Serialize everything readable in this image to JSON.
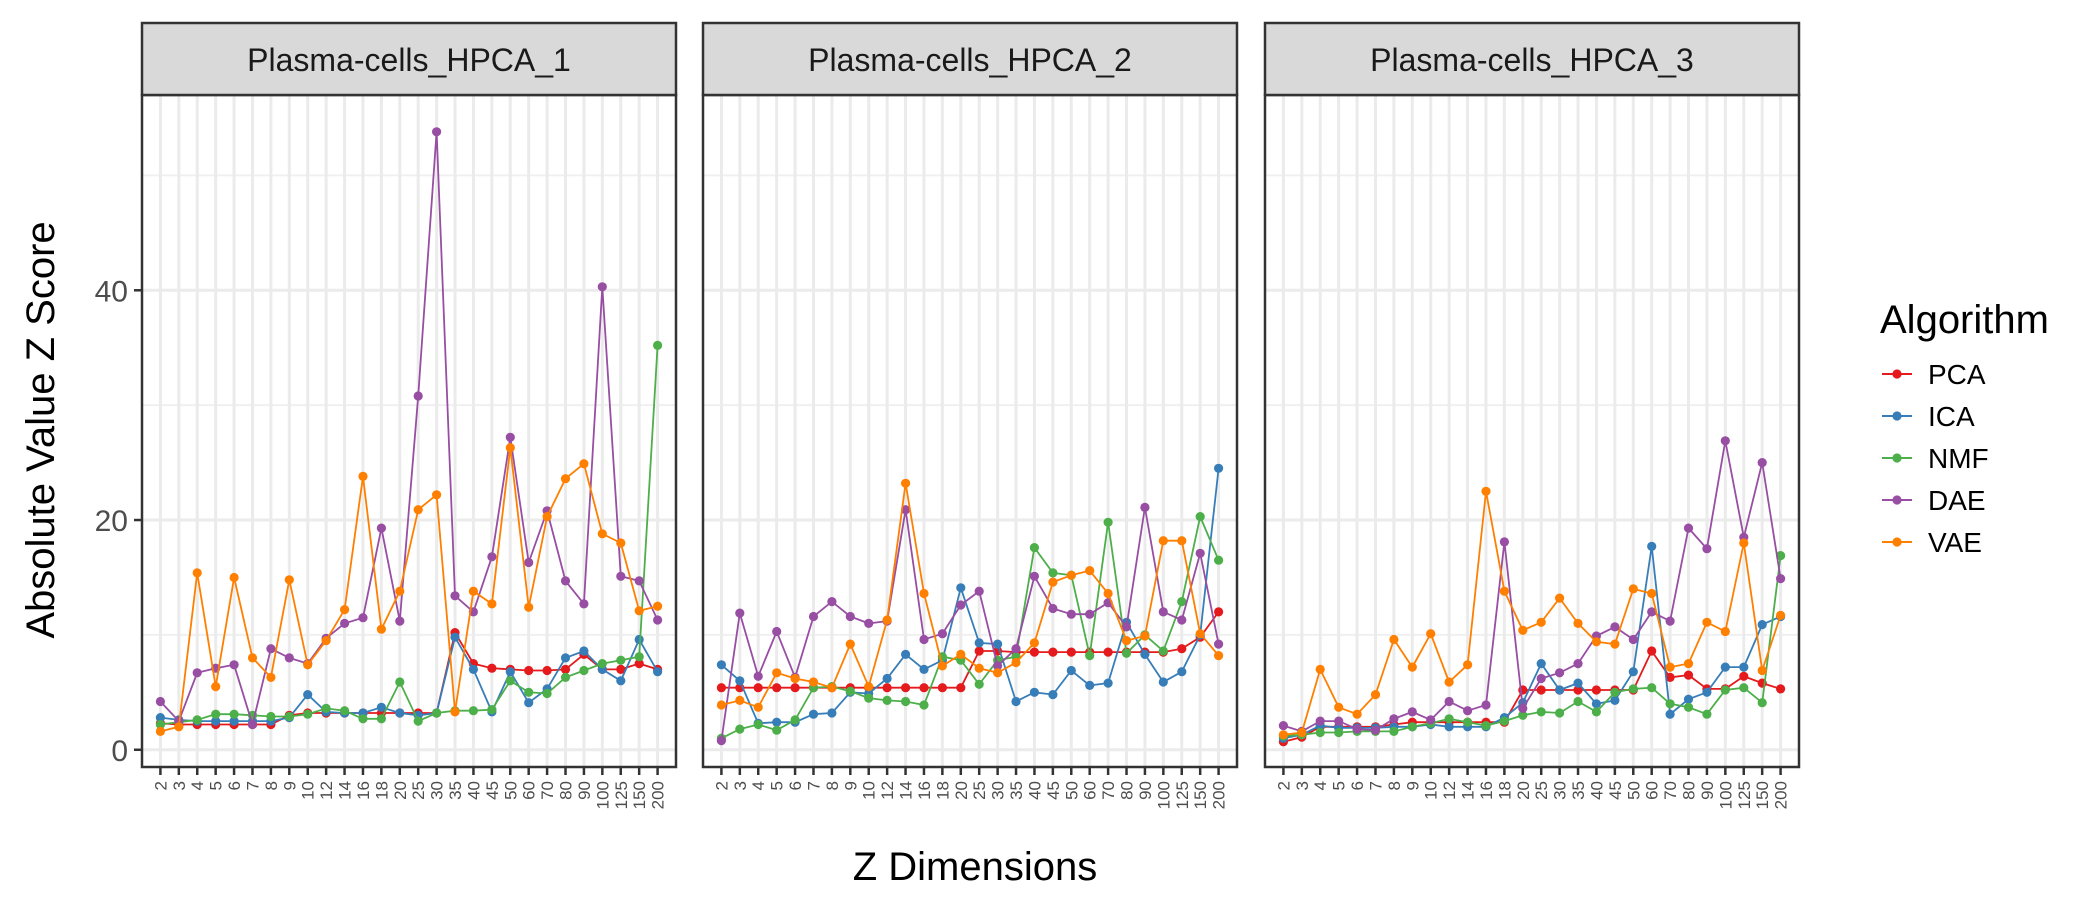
{
  "chart_data": {
    "type": "line",
    "xlabel": "Z Dimensions",
    "ylabel": "Absolute Value Z Score",
    "x": [
      "2",
      "3",
      "4",
      "5",
      "6",
      "7",
      "8",
      "9",
      "10",
      "12",
      "14",
      "16",
      "18",
      "20",
      "25",
      "30",
      "35",
      "40",
      "45",
      "50",
      "60",
      "70",
      "80",
      "90",
      "100",
      "125",
      "150",
      "200"
    ],
    "ylim": [
      -1.5,
      57
    ],
    "yticks": [
      0,
      20,
      40
    ],
    "grid": true,
    "legend": {
      "title": "Algorithm",
      "position": "right",
      "entries": [
        "PCA",
        "ICA",
        "NMF",
        "DAE",
        "VAE"
      ]
    },
    "colors": {
      "PCA": "#E41A1C",
      "ICA": "#377EB8",
      "NMF": "#4DAF4A",
      "DAE": "#984EA3",
      "VAE": "#FF7F00"
    },
    "panels": [
      {
        "title": "Plasma-cells_HPCA_1",
        "series": [
          {
            "name": "PCA",
            "values": [
              2.3,
              2.2,
              2.2,
              2.2,
              2.2,
              2.2,
              2.2,
              3.0,
              3.2,
              3.2,
              3.2,
              3.2,
              3.2,
              3.2,
              3.2,
              3.2,
              10.2,
              7.5,
              7.1,
              7.0,
              6.9,
              6.9,
              7.0,
              8.3,
              7.0,
              7.0,
              7.5,
              7.0
            ]
          },
          {
            "name": "ICA",
            "values": [
              2.8,
              2.6,
              2.5,
              2.5,
              2.5,
              2.5,
              2.5,
              2.8,
              4.8,
              3.3,
              3.2,
              3.2,
              3.7,
              3.2,
              3.0,
              3.2,
              9.8,
              7.0,
              3.3,
              6.8,
              4.1,
              5.3,
              8.0,
              8.6,
              7.0,
              6.0,
              9.6,
              6.8
            ]
          },
          {
            "name": "NMF",
            "values": [
              2.2,
              2.4,
              2.6,
              3.1,
              3.1,
              3.0,
              2.9,
              2.9,
              3.1,
              3.6,
              3.4,
              2.7,
              2.7,
              5.9,
              2.5,
              3.2,
              3.4,
              3.4,
              3.5,
              6.0,
              5.0,
              4.9,
              6.3,
              6.9,
              7.5,
              7.8,
              8.1,
              35.2
            ]
          },
          {
            "name": "DAE",
            "values": [
              4.2,
              2.5,
              6.7,
              7.1,
              7.4,
              2.2,
              8.8,
              8.0,
              7.5,
              9.7,
              11.0,
              11.5,
              19.3,
              11.2,
              30.8,
              53.8,
              13.4,
              12.0,
              16.8,
              27.2,
              16.3,
              20.8,
              14.7,
              12.7,
              40.3,
              15.1,
              14.7,
              11.3
            ]
          },
          {
            "name": "VAE",
            "values": [
              1.6,
              2.0,
              15.4,
              5.5,
              15.0,
              8.0,
              6.3,
              14.8,
              7.4,
              9.5,
              12.2,
              23.8,
              10.5,
              13.8,
              20.9,
              22.2,
              3.3,
              13.8,
              12.7,
              26.3,
              12.4,
              20.3,
              23.6,
              24.9,
              18.8,
              18.0,
              12.1,
              12.5
            ]
          }
        ]
      },
      {
        "title": "Plasma-cells_HPCA_2",
        "series": [
          {
            "name": "PCA",
            "values": [
              5.4,
              5.4,
              5.4,
              5.4,
              5.4,
              5.4,
              5.4,
              5.4,
              5.4,
              5.4,
              5.4,
              5.4,
              5.4,
              5.4,
              8.6,
              8.6,
              8.5,
              8.5,
              8.5,
              8.5,
              8.5,
              8.5,
              8.5,
              8.5,
              8.5,
              8.8,
              9.8,
              12.0
            ]
          },
          {
            "name": "ICA",
            "values": [
              7.4,
              6.0,
              2.3,
              2.4,
              2.4,
              3.1,
              3.2,
              5.0,
              4.9,
              6.2,
              8.3,
              7.0,
              7.8,
              14.1,
              9.3,
              9.2,
              4.2,
              5.0,
              4.8,
              6.9,
              5.6,
              5.8,
              11.1,
              8.3,
              5.9,
              6.8,
              10.0,
              24.5
            ]
          },
          {
            "name": "NMF",
            "values": [
              1.0,
              1.8,
              2.2,
              1.7,
              2.6,
              5.4,
              5.5,
              5.1,
              4.5,
              4.3,
              4.2,
              3.9,
              8.1,
              7.8,
              5.7,
              7.8,
              8.1,
              17.6,
              15.4,
              15.2,
              8.2,
              19.8,
              8.4,
              10.0,
              8.6,
              12.9,
              20.3,
              16.5
            ]
          },
          {
            "name": "DAE",
            "values": [
              0.8,
              11.9,
              6.4,
              10.3,
              6.3,
              11.6,
              12.9,
              11.6,
              11.0,
              11.2,
              20.9,
              9.6,
              10.1,
              12.6,
              13.8,
              7.3,
              8.8,
              15.1,
              12.3,
              11.8,
              11.8,
              12.8,
              10.7,
              21.1,
              12.0,
              11.3,
              17.1,
              9.2
            ]
          },
          {
            "name": "VAE",
            "values": [
              3.9,
              4.3,
              3.7,
              6.7,
              6.2,
              5.9,
              5.4,
              9.2,
              5.5,
              11.3,
              23.2,
              13.6,
              7.3,
              8.3,
              7.1,
              6.7,
              7.6,
              9.3,
              14.6,
              15.2,
              15.6,
              13.6,
              9.5,
              9.9,
              18.2,
              18.2,
              10.1,
              8.2
            ]
          }
        ]
      },
      {
        "title": "Plasma-cells_HPCA_3",
        "series": [
          {
            "name": "PCA",
            "values": [
              0.7,
              1.1,
              2.0,
              2.0,
              2.0,
              2.0,
              2.2,
              2.4,
              2.4,
              2.4,
              2.4,
              2.4,
              2.4,
              5.2,
              5.2,
              5.2,
              5.2,
              5.2,
              5.2,
              5.2,
              8.6,
              6.3,
              6.5,
              5.3,
              5.3,
              6.4,
              5.8,
              5.3
            ]
          },
          {
            "name": "ICA",
            "values": [
              1.0,
              1.3,
              2.1,
              1.9,
              1.9,
              1.9,
              2.0,
              2.0,
              2.2,
              2.0,
              2.0,
              2.0,
              2.8,
              4.1,
              7.5,
              5.2,
              5.8,
              4.0,
              4.3,
              6.8,
              17.7,
              3.1,
              4.4,
              5.0,
              7.2,
              7.2,
              10.9,
              11.6
            ]
          },
          {
            "name": "NMF",
            "values": [
              1.2,
              1.3,
              1.5,
              1.5,
              1.6,
              1.6,
              1.6,
              2.0,
              2.3,
              2.7,
              2.4,
              2.1,
              2.5,
              3.0,
              3.3,
              3.2,
              4.2,
              3.3,
              5.0,
              5.3,
              5.4,
              4.0,
              3.7,
              3.1,
              5.2,
              5.4,
              4.1,
              16.9
            ]
          },
          {
            "name": "DAE",
            "values": [
              2.1,
              1.6,
              2.5,
              2.5,
              1.8,
              1.7,
              2.7,
              3.3,
              2.6,
              4.2,
              3.4,
              3.9,
              18.1,
              3.6,
              6.2,
              6.7,
              7.5,
              9.9,
              10.7,
              9.6,
              12.0,
              11.2,
              19.3,
              17.5,
              26.9,
              18.5,
              25.0,
              14.9
            ]
          },
          {
            "name": "VAE",
            "values": [
              1.3,
              1.5,
              7.0,
              3.7,
              3.1,
              4.8,
              9.6,
              7.2,
              10.1,
              5.9,
              7.4,
              22.5,
              13.8,
              10.4,
              11.1,
              13.2,
              11.0,
              9.4,
              9.2,
              14.0,
              13.6,
              7.2,
              7.5,
              11.1,
              10.3,
              18.0,
              6.9,
              11.7
            ]
          }
        ]
      }
    ]
  }
}
